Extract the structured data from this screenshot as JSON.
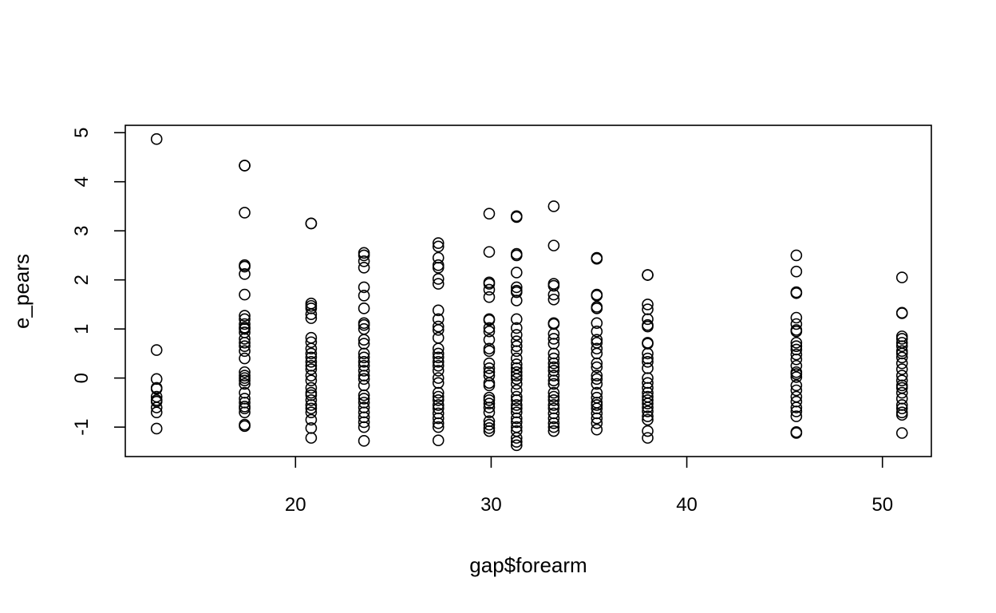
{
  "chart_data": {
    "type": "scatter",
    "title": "",
    "xlabel": "gap$forearm",
    "ylabel": "e_pears",
    "xlim": [
      11.3,
      52.5
    ],
    "ylim": [
      -1.6,
      5.15
    ],
    "xticks": [
      20,
      30,
      40,
      50
    ],
    "yticks": [
      -1,
      0,
      1,
      2,
      3,
      4,
      5
    ],
    "grid": false,
    "legend": "none",
    "point_color": "#000000",
    "columns": [
      {
        "x": 12.9,
        "y": [
          4.87,
          0.57,
          -0.02,
          -0.2,
          -0.22,
          -0.38,
          -0.45,
          -0.48,
          -0.6,
          -0.7,
          -1.03
        ]
      },
      {
        "x": 17.4,
        "y": [
          4.33,
          4.33,
          3.37,
          2.3,
          2.27,
          2.12,
          1.7,
          1.27,
          1.2,
          1.1,
          1.03,
          1.0,
          0.93,
          0.8,
          0.72,
          0.65,
          0.55,
          0.4,
          0.12,
          0.05,
          0.0,
          -0.05,
          -0.12,
          -0.3,
          -0.42,
          -0.5,
          -0.58,
          -0.62,
          -0.7,
          -0.95,
          -0.98
        ]
      },
      {
        "x": 20.8,
        "y": [
          3.15,
          3.15,
          1.52,
          1.47,
          1.42,
          1.3,
          1.22,
          0.82,
          0.73,
          0.6,
          0.5,
          0.42,
          0.33,
          0.25,
          0.18,
          0.05,
          -0.05,
          -0.2,
          -0.3,
          -0.35,
          -0.45,
          -0.55,
          -0.62,
          -0.7,
          -0.85,
          -1.02,
          -1.22
        ]
      },
      {
        "x": 23.5,
        "y": [
          2.55,
          2.5,
          2.38,
          2.25,
          1.85,
          1.68,
          1.42,
          1.12,
          1.08,
          1.0,
          0.78,
          0.7,
          0.5,
          0.42,
          0.33,
          0.25,
          0.15,
          0.05,
          -0.02,
          -0.15,
          -0.35,
          -0.42,
          -0.5,
          -0.6,
          -0.7,
          -0.8,
          -0.9,
          -1.0,
          -1.28
        ]
      },
      {
        "x": 27.3,
        "y": [
          2.75,
          2.68,
          2.45,
          2.3,
          2.25,
          2.02,
          1.92,
          1.38,
          1.2,
          1.05,
          0.98,
          0.82,
          0.6,
          0.5,
          0.42,
          0.33,
          0.25,
          0.15,
          0.0,
          -0.1,
          -0.3,
          -0.38,
          -0.45,
          -0.55,
          -0.62,
          -0.72,
          -0.82,
          -0.92,
          -1.0,
          -1.27
        ]
      },
      {
        "x": 29.9,
        "y": [
          3.35,
          2.57,
          1.95,
          1.92,
          1.8,
          1.65,
          1.2,
          1.18,
          1.02,
          0.95,
          0.78,
          0.6,
          0.55,
          0.3,
          0.2,
          0.12,
          0.05,
          -0.1,
          -0.15,
          -0.4,
          -0.45,
          -0.52,
          -0.6,
          -0.7,
          -0.88,
          -0.95,
          -1.02,
          -1.08
        ]
      },
      {
        "x": 31.3,
        "y": [
          3.3,
          3.28,
          2.53,
          2.5,
          2.15,
          1.85,
          1.78,
          1.75,
          1.58,
          1.2,
          1.02,
          0.88,
          0.75,
          0.65,
          0.55,
          0.4,
          0.28,
          0.2,
          0.12,
          0.05,
          -0.02,
          -0.12,
          -0.25,
          -0.38,
          -0.45,
          -0.55,
          -0.62,
          -0.7,
          -0.82,
          -0.9,
          -1.0,
          -1.08,
          -1.22,
          -1.3,
          -1.37
        ]
      },
      {
        "x": 33.2,
        "y": [
          3.5,
          2.7,
          1.92,
          1.88,
          1.7,
          1.6,
          1.12,
          1.1,
          0.9,
          0.8,
          0.7,
          0.5,
          0.4,
          0.3,
          0.22,
          0.15,
          0.05,
          -0.05,
          -0.12,
          -0.3,
          -0.38,
          -0.45,
          -0.55,
          -0.62,
          -0.72,
          -0.82,
          -0.92,
          -1.0,
          -1.08
        ]
      },
      {
        "x": 35.4,
        "y": [
          2.45,
          2.43,
          1.7,
          1.68,
          1.45,
          1.42,
          1.12,
          0.95,
          0.78,
          0.72,
          0.6,
          0.5,
          0.3,
          0.22,
          0.05,
          -0.02,
          -0.12,
          -0.3,
          -0.4,
          -0.5,
          -0.55,
          -0.62,
          -0.72,
          -0.82,
          -0.92,
          -1.05
        ]
      },
      {
        "x": 38.0,
        "y": [
          2.1,
          2.1,
          1.5,
          1.4,
          1.2,
          1.08,
          1.05,
          0.72,
          0.7,
          0.5,
          0.4,
          0.33,
          0.2,
          0.0,
          -0.1,
          -0.2,
          -0.3,
          -0.38,
          -0.45,
          -0.52,
          -0.6,
          -0.68,
          -0.78,
          -0.85,
          -1.08,
          -1.22
        ]
      },
      {
        "x": 45.6,
        "y": [
          2.5,
          2.17,
          1.75,
          1.73,
          1.23,
          1.1,
          0.98,
          0.95,
          0.72,
          0.65,
          0.58,
          0.48,
          0.38,
          0.25,
          0.12,
          0.08,
          0.02,
          -0.15,
          -0.25,
          -0.38,
          -0.48,
          -0.6,
          -0.68,
          -0.78,
          -1.1,
          -1.12
        ]
      },
      {
        "x": 51.0,
        "y": [
          2.05,
          1.33,
          1.32,
          0.85,
          0.8,
          0.72,
          0.65,
          0.55,
          0.5,
          0.42,
          0.3,
          0.18,
          0.05,
          -0.05,
          -0.15,
          -0.2,
          -0.3,
          -0.42,
          -0.55,
          -0.62,
          -0.7,
          -0.75,
          -1.12
        ]
      }
    ]
  }
}
